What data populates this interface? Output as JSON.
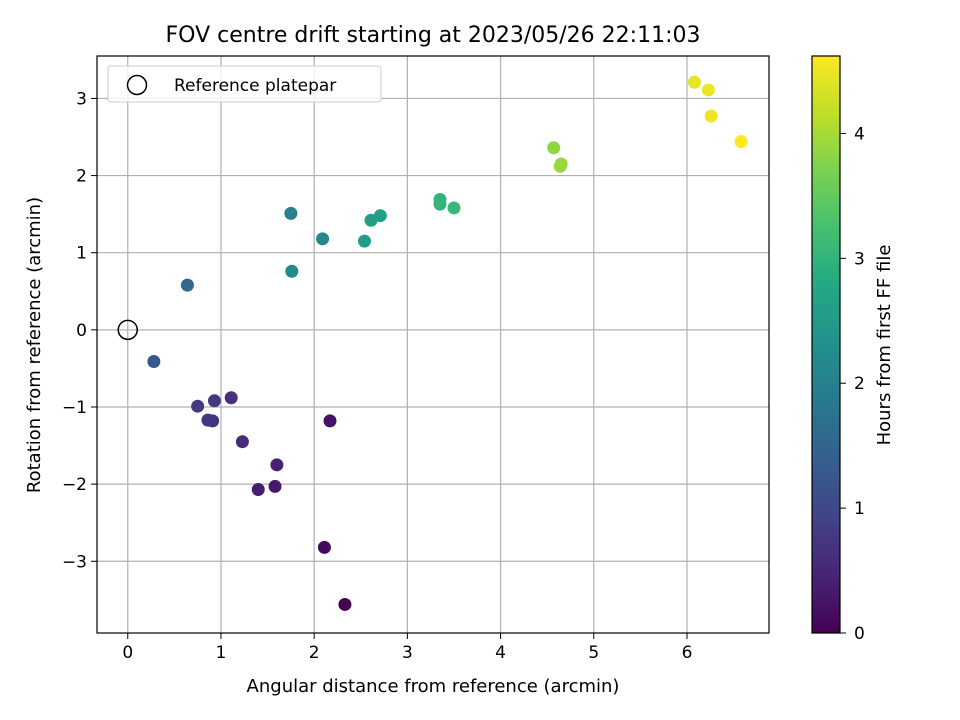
{
  "chart_data": {
    "type": "scatter",
    "title": "FOV centre drift starting at 2023/05/26 22:11:03",
    "xlabel": "Angular distance from reference (arcmin)",
    "ylabel": "Rotation from reference (arcmin)",
    "colorbar_label": "Hours from first FF file",
    "xlim": [
      -0.33,
      6.88
    ],
    "ylim": [
      -3.93,
      3.55
    ],
    "clim": [
      0,
      4.62
    ],
    "x_ticks": [
      0,
      1,
      2,
      3,
      4,
      5,
      6
    ],
    "y_ticks": [
      -3,
      -2,
      -1,
      0,
      1,
      2,
      3
    ],
    "colorbar_ticks": [
      0,
      1,
      2,
      3,
      4
    ],
    "grid": true,
    "legend_position": "top-left",
    "colormap": "viridis",
    "reference": {
      "name": "Reference platepar",
      "x": 0,
      "y": 0,
      "marker": "hollow circle"
    },
    "points": [
      {
        "x": 2.33,
        "y": -3.56,
        "t": 0.0
      },
      {
        "x": 2.11,
        "y": -2.82,
        "t": 0.12
      },
      {
        "x": 2.17,
        "y": -1.18,
        "t": 0.22
      },
      {
        "x": 1.58,
        "y": -2.03,
        "t": 0.32
      },
      {
        "x": 1.4,
        "y": -2.07,
        "t": 0.37
      },
      {
        "x": 1.6,
        "y": -1.75,
        "t": 0.42
      },
      {
        "x": 1.23,
        "y": -1.45,
        "t": 0.55
      },
      {
        "x": 1.11,
        "y": -0.88,
        "t": 0.62
      },
      {
        "x": 0.91,
        "y": -1.18,
        "t": 0.7
      },
      {
        "x": 0.86,
        "y": -1.17,
        "t": 0.72
      },
      {
        "x": 0.93,
        "y": -0.92,
        "t": 0.75
      },
      {
        "x": 0.75,
        "y": -0.99,
        "t": 0.78
      },
      {
        "x": 0.28,
        "y": -0.41,
        "t": 1.3
      },
      {
        "x": 0.64,
        "y": 0.58,
        "t": 1.55
      },
      {
        "x": 1.75,
        "y": 1.51,
        "t": 2.05
      },
      {
        "x": 2.09,
        "y": 1.18,
        "t": 2.15
      },
      {
        "x": 1.76,
        "y": 0.76,
        "t": 2.2
      },
      {
        "x": 2.54,
        "y": 1.15,
        "t": 2.55
      },
      {
        "x": 2.61,
        "y": 1.42,
        "t": 2.58
      },
      {
        "x": 2.71,
        "y": 1.48,
        "t": 2.62
      },
      {
        "x": 3.35,
        "y": 1.69,
        "t": 3.0
      },
      {
        "x": 3.35,
        "y": 1.63,
        "t": 3.02
      },
      {
        "x": 3.5,
        "y": 1.58,
        "t": 3.1
      },
      {
        "x": 4.57,
        "y": 2.36,
        "t": 3.85
      },
      {
        "x": 4.65,
        "y": 2.15,
        "t": 3.9
      },
      {
        "x": 4.64,
        "y": 2.12,
        "t": 3.92
      },
      {
        "x": 6.08,
        "y": 3.21,
        "t": 4.45
      },
      {
        "x": 6.23,
        "y": 3.11,
        "t": 4.5
      },
      {
        "x": 6.26,
        "y": 2.77,
        "t": 4.52
      },
      {
        "x": 6.58,
        "y": 2.44,
        "t": 4.62
      }
    ]
  }
}
